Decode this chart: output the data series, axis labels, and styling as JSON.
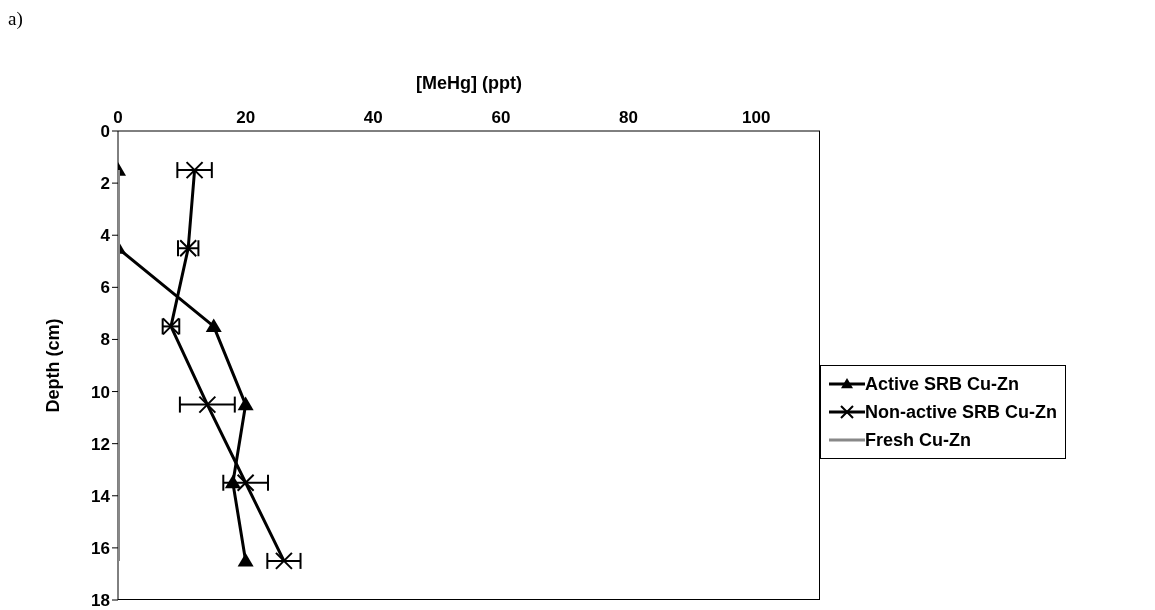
{
  "chart_data": {
    "type": "line",
    "orientation": "horizontal",
    "xlabel": "[MeHg] (ppt)",
    "ylabel": "Depth (cm)",
    "annotations": [
      "a)"
    ],
    "xlim": [
      0,
      110
    ],
    "xticks": [
      0,
      20,
      40,
      60,
      80,
      100
    ],
    "ylim": [
      18,
      0
    ],
    "yticks": [
      0,
      2,
      4,
      6,
      8,
      10,
      12,
      14,
      16,
      18
    ],
    "grid": false,
    "legend": "right",
    "series": [
      {
        "name": "Active SRB Cu-Zn",
        "color": "#000000",
        "marker": "triangle",
        "x": [
          1.5,
          4.5,
          7.5,
          10.5,
          13.5,
          16.5
        ],
        "values": [
          0,
          0,
          15,
          20,
          18,
          20
        ]
      },
      {
        "name": "Non-active SRB Cu-Zn",
        "color": "#000000",
        "marker": "cross",
        "x": [
          1.5,
          4.5,
          7.5,
          10.5,
          13.5,
          16.5
        ],
        "values": [
          12,
          11,
          8.3,
          14,
          20,
          26
        ],
        "errors": [
          2.7,
          1.6,
          1.3,
          4.3,
          3.5,
          2.6
        ]
      },
      {
        "name": "Fresh Cu-Zn",
        "color": "#888888",
        "marker": "none",
        "x": [
          1.5,
          4.5,
          7.5,
          10.5,
          13.5,
          16.5
        ],
        "values": [
          0,
          0,
          0,
          0,
          0,
          0
        ]
      }
    ]
  }
}
